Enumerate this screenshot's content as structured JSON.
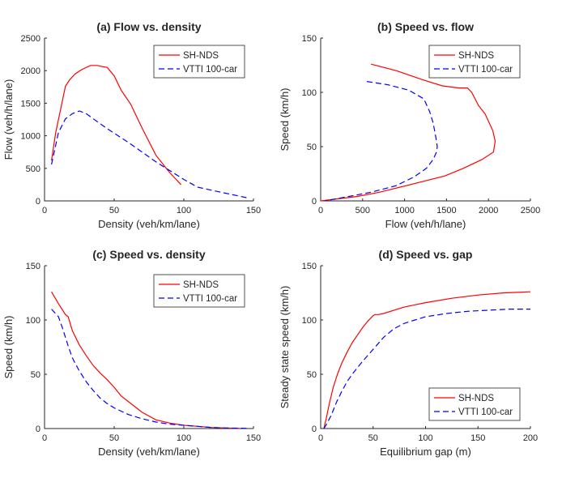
{
  "colors": {
    "sh_nds": "#ff0000",
    "vtti": "#0000ff"
  },
  "chart_data": [
    {
      "type": "line",
      "title": "(a) Flow vs. density",
      "xlabel": "Density (veh/km/lane)",
      "ylabel": "Flow (veh/h/lane)",
      "xlim": [
        0,
        150
      ],
      "ylim": [
        0,
        2500
      ],
      "xticks": [
        0,
        50,
        100,
        150
      ],
      "yticks": [
        0,
        500,
        1000,
        1500,
        2000,
        2500
      ],
      "grid": false,
      "legend": "top-right",
      "series": [
        {
          "name": "SH-NDS",
          "color": "#ff0000",
          "dash": "solid",
          "x": [
            5,
            8,
            12,
            15,
            18,
            22,
            27,
            33,
            38,
            42,
            45,
            50,
            55,
            62,
            70,
            80,
            90,
            98
          ],
          "y": [
            620,
            1050,
            1450,
            1760,
            1860,
            1950,
            2020,
            2080,
            2080,
            2060,
            2050,
            1920,
            1700,
            1480,
            1120,
            700,
            430,
            250
          ]
        },
        {
          "name": "VTTI 100-car",
          "color": "#0000ff",
          "dash": "dashed",
          "x": [
            5,
            10,
            15,
            20,
            25,
            30,
            35,
            45,
            60,
            80,
            100,
            110,
            125,
            145
          ],
          "y": [
            560,
            1050,
            1260,
            1340,
            1380,
            1340,
            1260,
            1110,
            900,
            600,
            330,
            210,
            140,
            50
          ]
        }
      ]
    },
    {
      "type": "line",
      "title": "(b) Speed vs. flow",
      "xlabel": "Flow (veh/h/lane)",
      "ylabel": "Speed (km/h)",
      "xlim": [
        0,
        2500
      ],
      "ylim": [
        0,
        150
      ],
      "xticks": [
        0,
        500,
        1000,
        1500,
        2000,
        2500
      ],
      "yticks": [
        0,
        50,
        100,
        150
      ],
      "grid": false,
      "legend": "top-right",
      "series": [
        {
          "name": "SH-NDS",
          "color": "#ff0000",
          "dash": "solid",
          "x": [
            600,
            900,
            1200,
            1450,
            1650,
            1750,
            1800,
            1880,
            1960,
            2050,
            2080,
            2060,
            1920,
            1700,
            1480,
            1120,
            700,
            430,
            0
          ],
          "y": [
            126,
            120,
            112,
            106,
            104,
            104,
            100,
            88,
            80,
            65,
            55,
            45,
            38,
            30,
            23,
            16,
            8,
            4,
            0
          ]
        },
        {
          "name": "VTTI 100-car",
          "color": "#0000ff",
          "dash": "dashed",
          "x": [
            550,
            800,
            1050,
            1230,
            1300,
            1340,
            1370,
            1390,
            1380,
            1340,
            1260,
            1110,
            900,
            600,
            330,
            50
          ],
          "y": [
            110,
            107,
            102,
            94,
            82,
            72,
            60,
            50,
            45,
            38,
            30,
            22,
            14,
            8,
            4,
            0
          ]
        }
      ]
    },
    {
      "type": "line",
      "title": "(c)  Speed vs. density",
      "xlabel": "Density (veh/km/lane)",
      "ylabel": "Speed (km/h)",
      "xlim": [
        0,
        150
      ],
      "ylim": [
        0,
        150
      ],
      "xticks": [
        0,
        50,
        100,
        150
      ],
      "yticks": [
        0,
        50,
        100,
        150
      ],
      "grid": false,
      "legend": "top-right",
      "series": [
        {
          "name": "SH-NDS",
          "color": "#ff0000",
          "dash": "solid",
          "x": [
            5,
            10,
            15,
            17,
            20,
            25,
            30,
            35,
            40,
            45,
            50,
            55,
            60,
            70,
            80,
            90,
            100,
            110,
            120,
            130,
            140
          ],
          "y": [
            126,
            115,
            105,
            103,
            90,
            77,
            67,
            58,
            51,
            45,
            38,
            30,
            25,
            15,
            8,
            5,
            3,
            2,
            1,
            0.5,
            0.2
          ]
        },
        {
          "name": "VTTI 100-car",
          "color": "#0000ff",
          "dash": "dashed",
          "x": [
            5,
            10,
            13,
            17,
            20,
            25,
            30,
            35,
            40,
            45,
            50,
            60,
            70,
            80,
            90,
            100,
            110,
            120,
            130,
            145
          ],
          "y": [
            110,
            103,
            92,
            76,
            65,
            53,
            43,
            35,
            28,
            23,
            19,
            13,
            9,
            6,
            4,
            3,
            2,
            1,
            0.5,
            0.2
          ]
        }
      ]
    },
    {
      "type": "line",
      "title": "(d) Speed vs. gap",
      "xlabel": "Equilibrium gap (m)",
      "ylabel": "Steady state speed (km/h)",
      "xlim": [
        0,
        200
      ],
      "ylim": [
        0,
        150
      ],
      "xticks": [
        0,
        50,
        100,
        150,
        200
      ],
      "yticks": [
        0,
        50,
        100,
        150
      ],
      "grid": false,
      "legend": "bottom-right",
      "series": [
        {
          "name": "SH-NDS",
          "color": "#ff0000",
          "dash": "solid",
          "x": [
            3,
            5,
            8,
            12,
            16,
            20,
            25,
            30,
            35,
            40,
            45,
            50,
            52,
            55,
            60,
            70,
            80,
            100,
            125,
            150,
            175,
            200
          ],
          "y": [
            0,
            8,
            22,
            38,
            50,
            60,
            70,
            79,
            86,
            93,
            99,
            104,
            105,
            105,
            106,
            109,
            112,
            116,
            120,
            123,
            125,
            126
          ]
        },
        {
          "name": "VTTI 100-car",
          "color": "#0000ff",
          "dash": "dashed",
          "x": [
            3,
            5,
            10,
            15,
            20,
            25,
            30,
            40,
            50,
            60,
            70,
            80,
            90,
            100,
            120,
            140,
            160,
            180,
            200
          ],
          "y": [
            0,
            3,
            12,
            24,
            34,
            43,
            50,
            62,
            73,
            84,
            92,
            97,
            100,
            103,
            106,
            108,
            109,
            110,
            110
          ]
        }
      ]
    }
  ]
}
